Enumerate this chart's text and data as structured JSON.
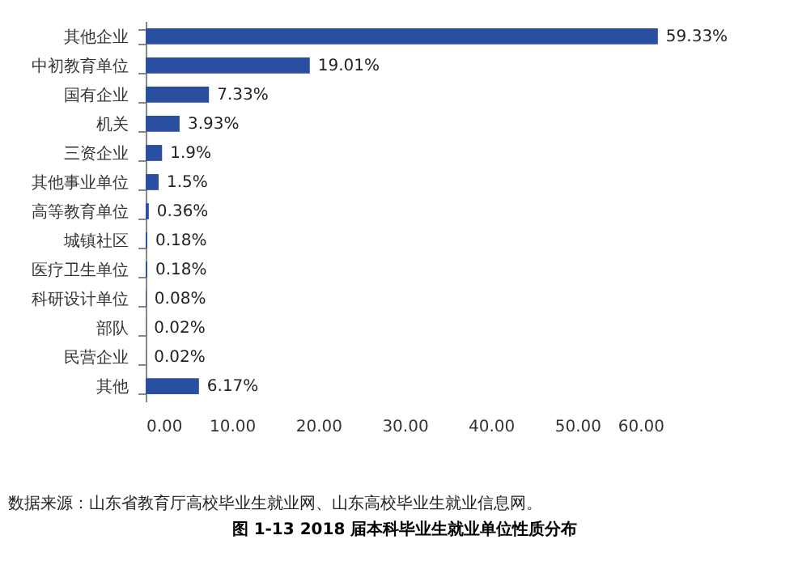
{
  "chart_data": {
    "type": "bar",
    "orientation": "horizontal",
    "title": "图 1-13    2018 届本科毕业生就业单位性质分布",
    "categories": [
      "其他企业",
      "中初教育单位",
      "国有企业",
      "机关",
      "三资企业",
      "其他事业单位",
      "高等教育单位",
      "城镇社区",
      "医疗卫生单位",
      "科研设计单位",
      "部队",
      "民营企业",
      "其他"
    ],
    "values": [
      59.33,
      19.01,
      7.33,
      3.93,
      1.9,
      1.5,
      0.36,
      0.18,
      0.18,
      0.08,
      0.02,
      0.02,
      6.17
    ],
    "value_labels": [
      "59.33%",
      "19.01%",
      "7.33%",
      "3.93%",
      "1.9%",
      "1.5%",
      "0.36%",
      "0.18%",
      "0.18%",
      "0.08%",
      "0.02%",
      "0.02%",
      "6.17%"
    ],
    "color": "#2a4fa0",
    "xlim": [
      0,
      60
    ],
    "xticks": [
      {
        "value": 0,
        "label": "0.00"
      },
      {
        "value": 10,
        "label": "10.00"
      },
      {
        "value": 20,
        "label": "20.00"
      },
      {
        "value": 30,
        "label": "30.00"
      },
      {
        "value": 40,
        "label": "40.00"
      },
      {
        "value": 50,
        "label": "50.00"
      },
      {
        "value": 60,
        "label": "60.00"
      }
    ],
    "annotations": [
      "数据来源：山东省教育厅高校毕业生就业网、山东高校毕业生就业信息网。"
    ]
  }
}
